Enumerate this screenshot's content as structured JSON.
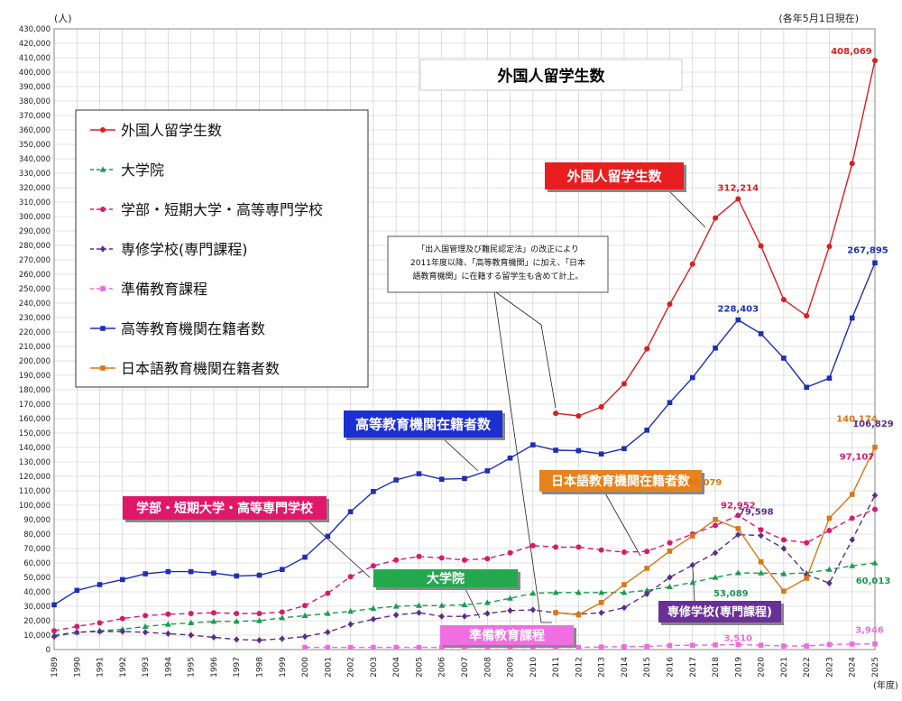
{
  "chart_data": {
    "type": "line",
    "title": "外国人留学生数",
    "unit_label": "(人)",
    "date_note": "(各年5月1日現在)",
    "xlabel": "(年度)",
    "ylim": [
      0,
      430000
    ],
    "ytick_step": 10000,
    "grid": true,
    "legend_position": "top-left",
    "x": [
      1989,
      1990,
      1991,
      1992,
      1993,
      1994,
      1995,
      1996,
      1997,
      1998,
      1999,
      2000,
      2001,
      2002,
      2003,
      2004,
      2005,
      2006,
      2007,
      2008,
      2009,
      2010,
      2011,
      2012,
      2013,
      2014,
      2015,
      2016,
      2017,
      2018,
      2019,
      2020,
      2021,
      2022,
      2023,
      2024,
      2025
    ],
    "series": [
      {
        "key": "total",
        "name": "外国人留学生数",
        "color": "#d62020",
        "marker": "circle",
        "dash": "",
        "values": [
          null,
          null,
          null,
          null,
          null,
          null,
          null,
          null,
          null,
          null,
          null,
          null,
          null,
          null,
          null,
          null,
          null,
          null,
          null,
          null,
          null,
          null,
          163697,
          161848,
          168145,
          184155,
          208379,
          239287,
          267042,
          298980,
          312214,
          279597,
          242444,
          231146,
          279274,
          336708,
          408069
        ]
      },
      {
        "key": "graduate",
        "name": "大学院",
        "color": "#1a9a50",
        "marker": "triangle",
        "dash": "6,4",
        "values": [
          10000,
          12000,
          13000,
          14000,
          16000,
          17500,
          18500,
          19500,
          19500,
          20000,
          22000,
          23500,
          25000,
          26500,
          28500,
          30000,
          30500,
          30500,
          31000,
          32500,
          35500,
          39000,
          39500,
          39500,
          39500,
          39500,
          41000,
          43500,
          46500,
          50000,
          53089,
          53000,
          52500,
          53000,
          55500,
          58000,
          60013
        ]
      },
      {
        "key": "undergrad",
        "name": "学部・短期大学・高等専門学校",
        "color": "#d81a6a",
        "marker": "circle",
        "dash": "6,4",
        "values": [
          13000,
          16000,
          18500,
          21500,
          23500,
          24500,
          25000,
          25500,
          25000,
          25000,
          26000,
          30500,
          39000,
          50500,
          58000,
          62000,
          64500,
          63500,
          62000,
          63000,
          67000,
          72000,
          71000,
          71000,
          69000,
          67500,
          68000,
          74000,
          80000,
          86000,
          92952,
          83000,
          76000,
          74000,
          82500,
          91000,
          97107
        ]
      },
      {
        "key": "vocational",
        "name": "専修学校(専門課程)",
        "color": "#5a2d8c",
        "marker": "diamond",
        "dash": "6,4",
        "values": [
          9000,
          12000,
          12500,
          12500,
          12000,
          11000,
          10000,
          8500,
          7000,
          6500,
          7500,
          9000,
          12000,
          17500,
          21000,
          24000,
          25500,
          23000,
          23000,
          25000,
          27000,
          27500,
          25500,
          24500,
          25500,
          29000,
          38500,
          50000,
          58500,
          67000,
          79598,
          79000,
          70000,
          52000,
          46000,
          76000,
          106829
        ]
      },
      {
        "key": "prep",
        "name": "準備教育課程",
        "color": "#ef6adf",
        "marker": "square",
        "dash": "6,4",
        "values": [
          null,
          null,
          null,
          null,
          null,
          null,
          null,
          null,
          null,
          null,
          null,
          1500,
          1500,
          1500,
          1500,
          1500,
          1500,
          1500,
          1500,
          1500,
          1500,
          1500,
          1500,
          1500,
          1800,
          2000,
          2200,
          2800,
          3000,
          3200,
          3510,
          3000,
          2500,
          2500,
          3500,
          3800,
          3946
        ]
      },
      {
        "key": "higher",
        "name": "高等教育機関在籍者数",
        "color": "#1c2fb5",
        "marker": "square",
        "dash": "",
        "values": [
          31000,
          41000,
          45000,
          48500,
          52500,
          54000,
          54000,
          53000,
          51000,
          51500,
          55500,
          64000,
          78500,
          95500,
          109500,
          117500,
          121800,
          118000,
          118500,
          123800,
          132700,
          141800,
          138100,
          137800,
          135500,
          139200,
          152000,
          171100,
          188400,
          208900,
          228403,
          218800,
          201900,
          181700,
          188000,
          229700,
          267895
        ]
      },
      {
        "key": "japanese",
        "name": "日本語教育機関在籍者数",
        "color": "#d97718",
        "marker": "square",
        "dash": "",
        "values": [
          null,
          null,
          null,
          null,
          null,
          null,
          null,
          null,
          null,
          null,
          null,
          null,
          null,
          null,
          null,
          null,
          null,
          null,
          null,
          null,
          null,
          null,
          25600,
          24100,
          32600,
          44970,
          56320,
          68160,
          78660,
          90079,
          83810,
          60810,
          40500,
          49400,
          91000,
          107500,
          140174
        ]
      }
    ],
    "data_labels": [
      {
        "series": "total",
        "x": 2025,
        "text": "408,069"
      },
      {
        "series": "total",
        "x": 2019,
        "text": "312,214"
      },
      {
        "series": "higher",
        "x": 2019,
        "text": "228,403"
      },
      {
        "series": "higher",
        "x": 2025,
        "text": "267,895"
      },
      {
        "series": "japanese",
        "x": 2025,
        "text": "140,174"
      },
      {
        "series": "undergrad",
        "x": 2025,
        "text": "97,107"
      },
      {
        "series": "vocational",
        "x": 2025,
        "text": "106,829"
      },
      {
        "series": "japanese",
        "x": 2018,
        "text": "90,079"
      },
      {
        "series": "undergrad",
        "x": 2019,
        "text": "92,952"
      },
      {
        "series": "vocational",
        "x": 2019,
        "text": "79,598"
      },
      {
        "series": "graduate",
        "x": 2019,
        "text": "53,089"
      },
      {
        "series": "graduate",
        "x": 2025,
        "text": "60,013"
      },
      {
        "series": "prep",
        "x": 2019,
        "text": "3,510"
      },
      {
        "series": "prep",
        "x": 2025,
        "text": "3,946"
      }
    ],
    "callouts": [
      {
        "key": "total",
        "text": "外国人留学生数",
        "bg": "#e81e1e"
      },
      {
        "key": "higher",
        "text": "高等教育機関在籍者数",
        "bg": "#1c2fd0"
      },
      {
        "key": "japanese",
        "text": "日本語教育機関在籍者数",
        "bg": "#e8821c"
      },
      {
        "key": "undergrad",
        "text": "学部・短期大学・高等専門学校",
        "bg": "#e0186a"
      },
      {
        "key": "graduate",
        "text": "大学院",
        "bg": "#23a84e"
      },
      {
        "key": "prep",
        "text": "準備教育課程",
        "bg": "#f06ee2"
      },
      {
        "key": "vocational",
        "text": "専修学校(専門課程)",
        "bg": "#6a3098"
      }
    ],
    "note_lines": [
      "「出入国管理及び難民認定法」の改正により",
      "2011年度以降、「高等教育機関」に加え、「日本",
      "語教育機関」に在籍する留学生も含めて計上。"
    ]
  }
}
